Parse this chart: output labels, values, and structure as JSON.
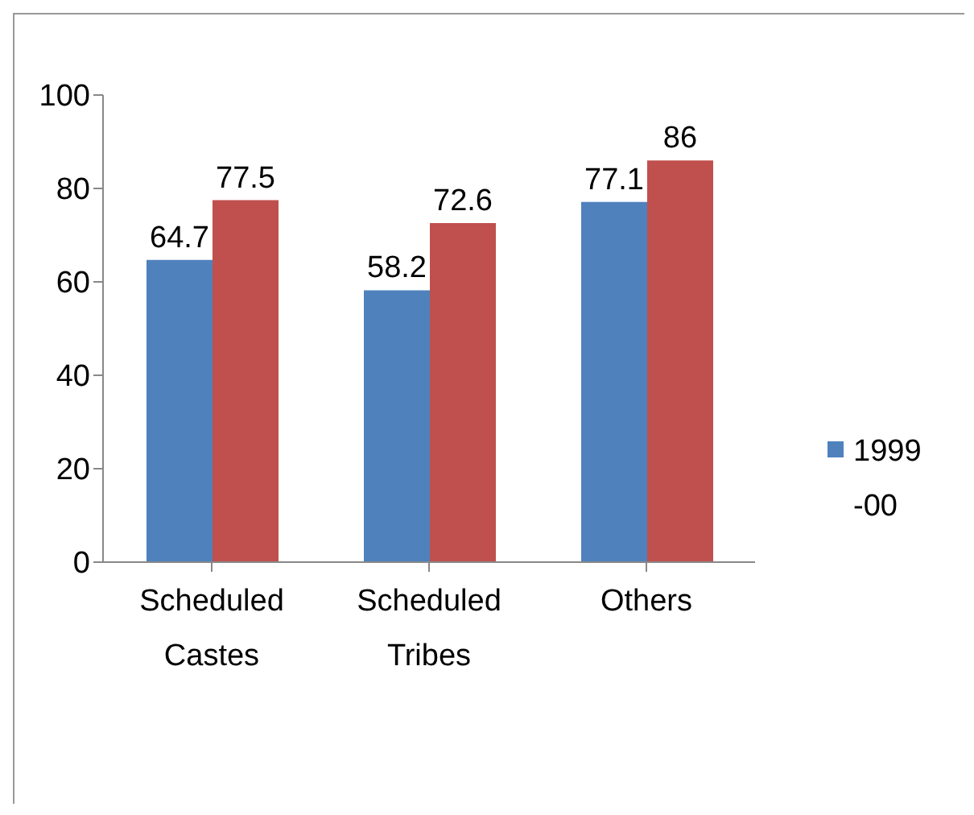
{
  "chart_data": {
    "type": "bar",
    "categories": [
      "Scheduled Castes",
      "Scheduled Tribes",
      "Others"
    ],
    "series": [
      {
        "name": "1999-00",
        "color": "#4f81bd",
        "values": [
          64.7,
          58.2,
          77.1
        ]
      },
      {
        "color": "#c0504d",
        "values": [
          77.5,
          72.6,
          86
        ]
      }
    ],
    "ylim": [
      0,
      100
    ],
    "yticks": [
      0,
      20,
      40,
      60,
      80,
      100
    ],
    "grid": false,
    "legend": "right",
    "data_labels": true
  }
}
